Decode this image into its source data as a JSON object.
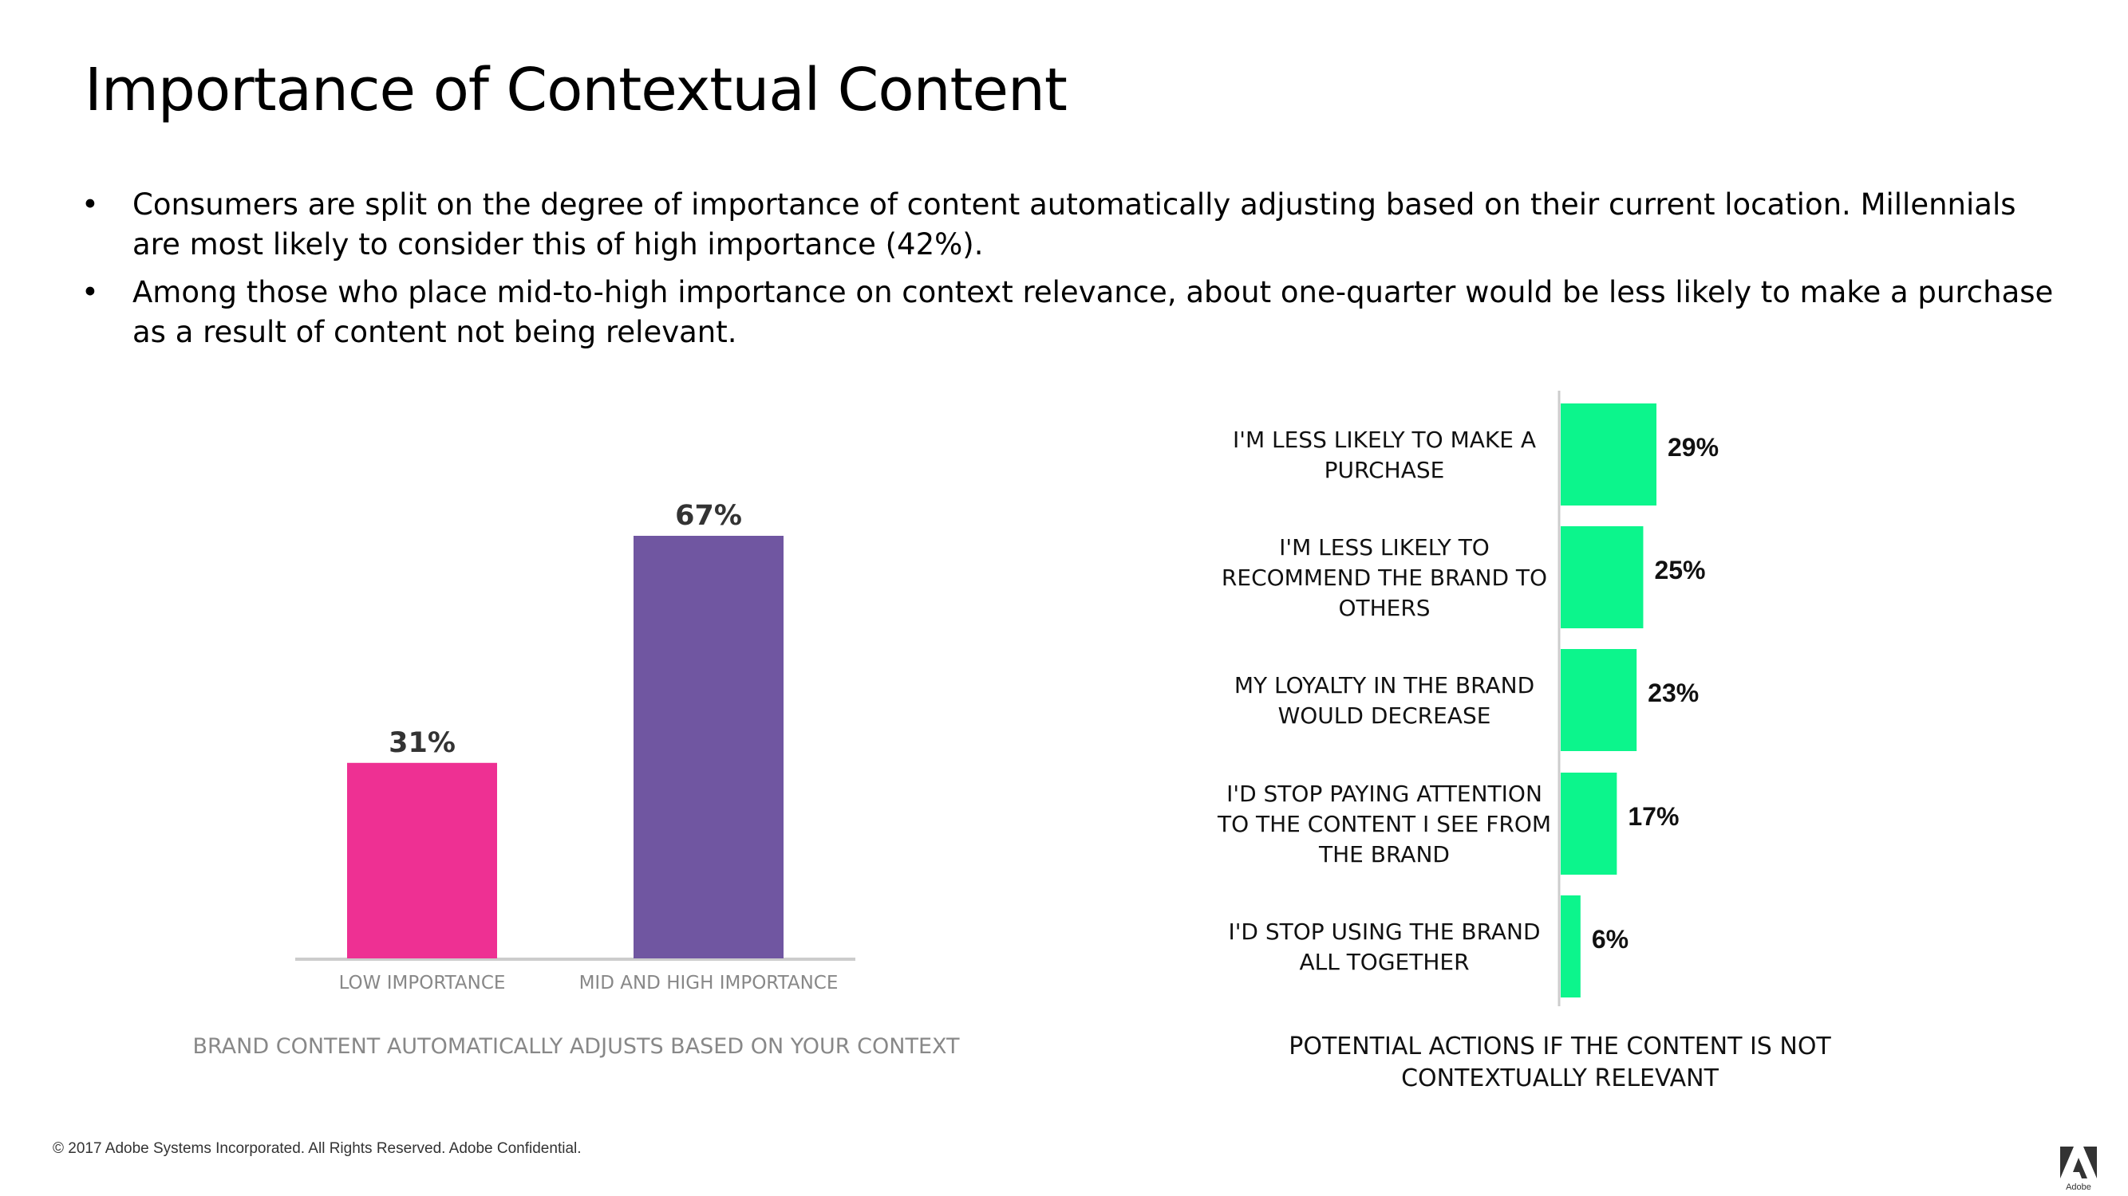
{
  "title": "Importance of Contextual Content",
  "bullets": [
    "Consumers are split on the degree of importance of content automatically adjusting based on their current location. Millennials are most likely to consider this of high importance (42%).",
    "Among those who place mid-to-high importance on context relevance, about one-quarter would be less likely to make a purchase as a result of content not being relevant."
  ],
  "footer": "© 2017 Adobe Systems Incorporated.  All Rights Reserved.  Adobe Confidential.",
  "logo_text": "Adobe",
  "colors": {
    "pink": "#EE3093",
    "purple": "#7056A1",
    "green": "#0CF58C",
    "axis": "#CCCCCC"
  },
  "chart_data": [
    {
      "type": "bar",
      "title": "BRAND CONTENT AUTOMATICALLY ADJUSTS BASED ON YOUR CONTEXT",
      "categories": [
        "LOW IMPORTANCE",
        "MID AND HIGH IMPORTANCE"
      ],
      "values": [
        31,
        67
      ],
      "value_labels": [
        "31%",
        "67%"
      ],
      "ylim": [
        0,
        67
      ],
      "grid": false
    },
    {
      "type": "bar",
      "orientation": "horizontal",
      "title": "POTENTIAL ACTIONS IF THE CONTENT IS NOT CONTEXTUALLY RELEVANT",
      "categories": [
        "I'M LESS LIKELY TO MAKE A PURCHASE",
        "I'M LESS LIKELY TO RECOMMEND THE BRAND TO OTHERS",
        "MY LOYALTY IN THE BRAND WOULD DECREASE",
        "I'D STOP PAYING ATTENTION TO THE CONTENT I SEE FROM THE BRAND",
        "I'D STOP USING THE BRAND ALL TOGETHER"
      ],
      "values": [
        29,
        25,
        23,
        17,
        6
      ],
      "value_labels": [
        "29%",
        "25%",
        "23%",
        "17%",
        "6%"
      ],
      "xlim": [
        0,
        29
      ],
      "grid": false
    }
  ]
}
